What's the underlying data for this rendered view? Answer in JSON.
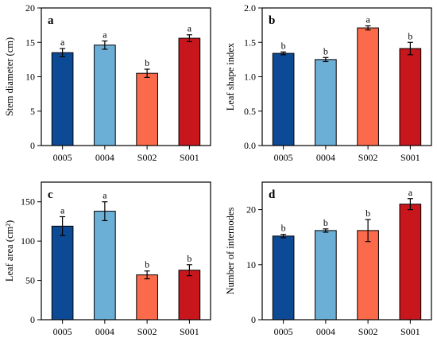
{
  "chart_data": [
    {
      "type": "bar",
      "panel": "a",
      "categories": [
        "0005",
        "0004",
        "S002",
        "S001"
      ],
      "values": [
        13.5,
        14.6,
        10.5,
        15.6
      ],
      "errors": [
        0.6,
        0.6,
        0.6,
        0.5
      ],
      "letters": [
        "a",
        "a",
        "b",
        "a"
      ],
      "ylabel": "Stem diameter (cm)",
      "ylim": [
        0,
        20
      ],
      "yticks": [
        "0",
        "5",
        "10",
        "15",
        "20"
      ],
      "ytick_values": [
        0,
        5,
        10,
        15,
        20
      ],
      "colors": [
        "#0d4a96",
        "#6baed6",
        "#fb6a4a",
        "#c8161d"
      ]
    },
    {
      "type": "bar",
      "panel": "b",
      "categories": [
        "0005",
        "0004",
        "S002",
        "S001"
      ],
      "values": [
        1.34,
        1.25,
        1.71,
        1.41
      ],
      "errors": [
        0.02,
        0.03,
        0.03,
        0.09
      ],
      "letters": [
        "b",
        "b",
        "a",
        "b"
      ],
      "ylabel": "Leaf shape index",
      "ylim": [
        0,
        2.0
      ],
      "yticks": [
        "0.0",
        "0.5",
        "1.0",
        "1.5",
        "2.0"
      ],
      "ytick_values": [
        0,
        0.5,
        1.0,
        1.5,
        2.0
      ],
      "colors": [
        "#0d4a96",
        "#6baed6",
        "#fb6a4a",
        "#c8161d"
      ]
    },
    {
      "type": "bar",
      "panel": "c",
      "categories": [
        "0005",
        "0004",
        "S002",
        "S001"
      ],
      "values": [
        119,
        138,
        57,
        63
      ],
      "errors": [
        12,
        12,
        5,
        7
      ],
      "letters": [
        "a",
        "a",
        "b",
        "b"
      ],
      "ylabel": "Leaf area (cm²)",
      "ylim": [
        0,
        175
      ],
      "yticks": [
        "0",
        "50",
        "100",
        "150"
      ],
      "ytick_values": [
        0,
        50,
        100,
        150
      ],
      "colors": [
        "#0d4a96",
        "#6baed6",
        "#fb6a4a",
        "#c8161d"
      ]
    },
    {
      "type": "bar",
      "panel": "d",
      "categories": [
        "0005",
        "0004",
        "S002",
        "S001"
      ],
      "values": [
        15.2,
        16.2,
        16.2,
        21.0
      ],
      "errors": [
        0.3,
        0.3,
        2.0,
        1.0
      ],
      "letters": [
        "b",
        "b",
        "b",
        "a"
      ],
      "ylabel": "Number of internodes",
      "ylim": [
        0,
        25
      ],
      "yticks": [
        "0",
        "10",
        "20"
      ],
      "ytick_values": [
        0,
        10,
        20
      ],
      "colors": [
        "#0d4a96",
        "#6baed6",
        "#fb6a4a",
        "#c8161d"
      ]
    }
  ]
}
